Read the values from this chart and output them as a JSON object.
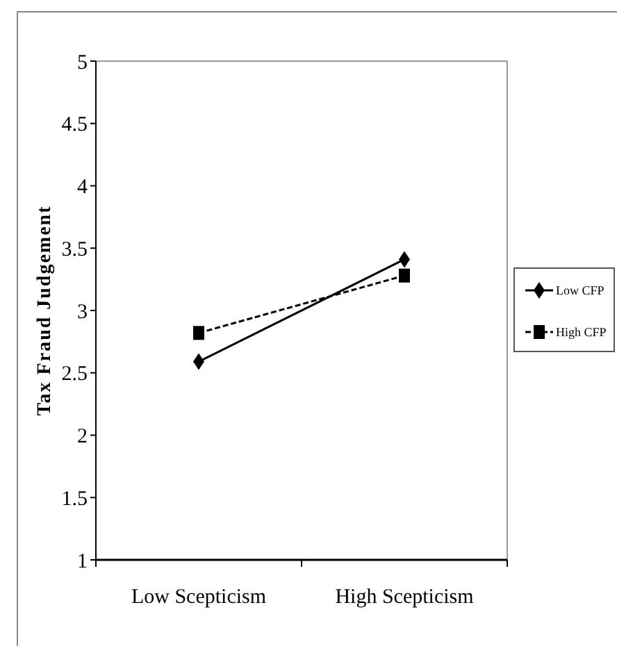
{
  "chart_data": {
    "type": "line",
    "ylabel": "Tax Fraud Judgement",
    "categories": [
      "Low Scepticism",
      "High Scepticism"
    ],
    "series": [
      {
        "name": "Low CFP",
        "color": "#000000",
        "values": [
          2.59,
          3.41
        ],
        "marker": "diamond",
        "line_style": "solid"
      },
      {
        "name": "High CFP",
        "color": "#000000",
        "values": [
          2.82,
          3.28
        ],
        "marker": "square",
        "line_style": "dashed"
      }
    ],
    "ylim": [
      1,
      5
    ],
    "yticks": [
      1,
      1.5,
      2,
      2.5,
      3,
      3.5,
      4,
      4.5,
      5
    ],
    "grid": false,
    "legend": "right"
  }
}
